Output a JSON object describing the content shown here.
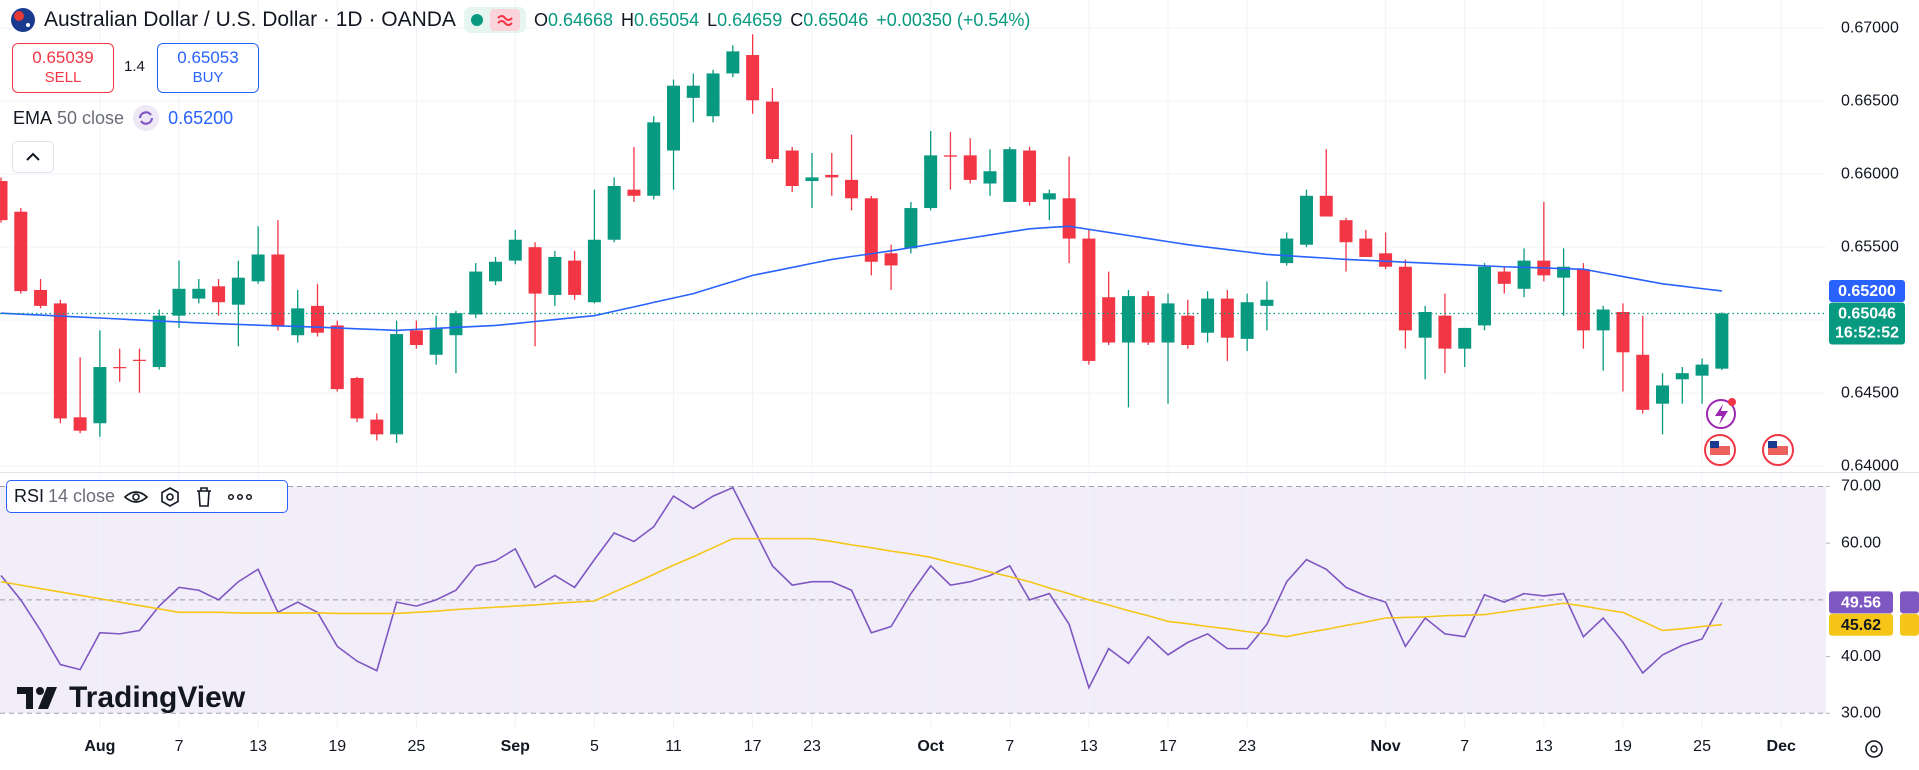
{
  "header": {
    "symbol": "Australian Dollar / U.S. Dollar · 1D · OANDA",
    "ohlc": [
      {
        "key": "O",
        "value": "0.64668"
      },
      {
        "key": "H",
        "value": "0.65054"
      },
      {
        "key": "L",
        "value": "0.64659"
      },
      {
        "key": "C",
        "value": "0.65046"
      }
    ],
    "change": "+0.00350 (+0.54%)"
  },
  "trade": {
    "sell_price": "0.65039",
    "sell": "SELL",
    "spread": "1.4",
    "buy_price": "0.65053",
    "buy": "BUY"
  },
  "watermark": "TradingView",
  "chart_data": [
    {
      "type": "candlestick",
      "categories": [
        null,
        null,
        null,
        null,
        null,
        "Aug",
        null,
        null,
        null,
        "7",
        null,
        null,
        null,
        "13",
        null,
        null,
        null,
        "19",
        null,
        null,
        null,
        "25",
        null,
        null,
        null,
        null,
        "Sep",
        null,
        null,
        null,
        "5",
        null,
        null,
        null,
        "11",
        null,
        null,
        null,
        "17",
        null,
        null,
        "23",
        null,
        null,
        null,
        null,
        null,
        "Oct",
        null,
        null,
        null,
        "7",
        null,
        null,
        null,
        "13",
        null,
        null,
        null,
        "17",
        null,
        null,
        null,
        "23",
        null,
        null,
        null,
        null,
        null,
        null,
        "Nov",
        null,
        null,
        null,
        "7",
        null,
        null,
        null,
        "13",
        null,
        null,
        null,
        "19",
        null,
        null,
        null,
        "25",
        null
      ],
      "future_categories": [
        null,
        null,
        "Dec"
      ],
      "open": [
        0.65953,
        0.65743,
        0.65207,
        0.65115,
        0.64335,
        0.64294,
        0.64679,
        0.64729,
        0.64679,
        0.65031,
        0.65148,
        0.65232,
        0.65106,
        0.65266,
        0.6545,
        0.64897,
        0.65098,
        0.64964,
        0.64604,
        0.64319,
        0.64218,
        0.6493,
        0.64763,
        0.64897,
        0.65039,
        0.65266,
        0.65408,
        0.655,
        0.65173,
        0.65408,
        0.65123,
        0.65551,
        0.65894,
        0.65852,
        0.66162,
        0.66523,
        0.66397,
        0.6669,
        0.66816,
        0.66497,
        0.66162,
        0.65953,
        0.65995,
        0.65961,
        0.65835,
        0.65458,
        0.65492,
        0.65768,
        0.66129,
        0.66129,
        0.65936,
        0.6581,
        0.66162,
        0.65827,
        0.65835,
        0.65559,
        0.65157,
        0.64847,
        0.65165,
        0.64847,
        0.65031,
        0.64914,
        0.65148,
        0.64872,
        0.65098,
        0.65391,
        0.65517,
        0.65852,
        0.65685,
        0.65559,
        0.65458,
        0.65366,
        0.6488,
        0.65031,
        0.64805,
        0.64964,
        0.65333,
        0.65215,
        0.65408,
        0.65291,
        0.65349,
        0.6493,
        0.65056,
        0.64763,
        0.64428,
        0.64595,
        0.6462,
        0.64668
      ],
      "high": [
        0.65978,
        0.65768,
        0.65282,
        0.6514,
        0.64746,
        0.6493,
        0.64805,
        0.64805,
        0.65073,
        0.65408,
        0.65282,
        0.65282,
        0.65408,
        0.65643,
        0.65685,
        0.65207,
        0.65249,
        0.64997,
        0.64612,
        0.64361,
        0.64997,
        0.64997,
        0.65031,
        0.65064,
        0.65391,
        0.65433,
        0.65618,
        0.65534,
        0.65475,
        0.65475,
        0.65894,
        0.65978,
        0.66187,
        0.66397,
        0.66648,
        0.6669,
        0.66715,
        0.66883,
        0.66958,
        0.6659,
        0.66187,
        0.66145,
        0.66145,
        0.66271,
        0.65852,
        0.65517,
        0.6581,
        0.66296,
        0.66288,
        0.66246,
        0.66171,
        0.66187,
        0.66187,
        0.65894,
        0.6612,
        0.65626,
        0.65333,
        0.65207,
        0.65199,
        0.65182,
        0.6514,
        0.65199,
        0.65207,
        0.65182,
        0.65266,
        0.65601,
        0.65894,
        0.66171,
        0.65701,
        0.65618,
        0.65601,
        0.65416,
        0.65098,
        0.65182,
        0.64947,
        0.65391,
        0.65366,
        0.65492,
        0.6581,
        0.65492,
        0.65391,
        0.65098,
        0.65115,
        0.65031,
        0.64637,
        0.64679,
        0.64738,
        0.65054
      ],
      "low": [
        0.65668,
        0.65182,
        0.65081,
        0.64294,
        0.64226,
        0.64201,
        0.64578,
        0.64503,
        0.64662,
        0.64947,
        0.65115,
        0.65031,
        0.64821,
        0.65249,
        0.6493,
        0.64847,
        0.64888,
        0.64511,
        0.64302,
        0.64176,
        0.64159,
        0.64805,
        0.64696,
        0.64637,
        0.65014,
        0.6524,
        0.65383,
        0.64821,
        0.65098,
        0.6514,
        0.65115,
        0.65534,
        0.6581,
        0.65827,
        0.65894,
        0.66355,
        0.66355,
        0.66665,
        0.66414,
        0.66078,
        0.65877,
        0.65768,
        0.65852,
        0.65752,
        0.65307,
        0.65207,
        0.65458,
        0.65752,
        0.65894,
        0.65936,
        0.65852,
        0.6581,
        0.65785,
        0.65685,
        0.65391,
        0.64696,
        0.6483,
        0.64402,
        0.6483,
        0.64428,
        0.64805,
        0.64847,
        0.64721,
        0.64788,
        0.6493,
        0.65375,
        0.655,
        0.65726,
        0.65333,
        0.65433,
        0.65349,
        0.64805,
        0.64595,
        0.64637,
        0.64679,
        0.6493,
        0.65182,
        0.65157,
        0.65266,
        0.65031,
        0.64805,
        0.64654,
        0.64511,
        0.64361,
        0.64218,
        0.64428,
        0.64428,
        0.64659
      ],
      "close": [
        0.65685,
        0.65199,
        0.65098,
        0.64327,
        0.64243,
        0.64679,
        0.64671,
        0.64721,
        0.65031,
        0.65215,
        0.65215,
        0.65123,
        0.65291,
        0.6545,
        0.64956,
        0.65081,
        0.64914,
        0.64528,
        0.64327,
        0.64218,
        0.64905,
        0.6483,
        0.64947,
        0.65048,
        0.65333,
        0.654,
        0.65551,
        0.65182,
        0.65433,
        0.65173,
        0.65551,
        0.65919,
        0.65852,
        0.66355,
        0.66606,
        0.66606,
        0.6669,
        0.66841,
        0.66506,
        0.66104,
        0.65919,
        0.65978,
        0.65978,
        0.65835,
        0.654,
        0.65375,
        0.65768,
        0.66129,
        0.6612,
        0.65961,
        0.6602,
        0.66171,
        0.6581,
        0.65869,
        0.65559,
        0.64721,
        0.64847,
        0.65165,
        0.64847,
        0.65115,
        0.6483,
        0.65148,
        0.6488,
        0.65123,
        0.6514,
        0.65559,
        0.65852,
        0.6571,
        0.65534,
        0.65433,
        0.65366,
        0.6493,
        0.65056,
        0.64805,
        0.64947,
        0.65366,
        0.65249,
        0.65408,
        0.65307,
        0.65366,
        0.6493,
        0.65073,
        0.6478,
        0.64386,
        0.64553,
        0.64637,
        0.64696,
        0.65046
      ],
      "up_color": "#089981",
      "down_color": "#f23645",
      "last_label": "0.65046",
      "countdown": "16:52:52",
      "overlays": [
        {
          "name": "EMA",
          "params": "50 close",
          "color": "#2962ff",
          "value_label": "0.65200",
          "values": [
            0.65048,
            0.65041,
            0.65035,
            0.65028,
            0.65021,
            0.65015,
            0.65008,
            0.65001,
            0.64994,
            0.64988,
            0.64981,
            0.64976,
            0.64971,
            0.64966,
            0.64961,
            0.64957,
            0.64952,
            0.64947,
            0.64941,
            0.64936,
            0.6493,
            0.64937,
            0.64944,
            0.6495,
            0.64957,
            0.64964,
            0.64977,
            0.64991,
            0.65004,
            0.65018,
            0.65031,
            0.65061,
            0.65091,
            0.65122,
            0.65152,
            0.65182,
            0.65224,
            0.65265,
            0.65307,
            0.65334,
            0.65361,
            0.65389,
            0.65416,
            0.65436,
            0.65455,
            0.65475,
            0.65497,
            0.6552,
            0.65542,
            0.65563,
            0.65584,
            0.65605,
            0.65626,
            0.65635,
            0.65643,
            0.65622,
            0.65601,
            0.6558,
            0.65559,
            0.65538,
            0.65517,
            0.655,
            0.65484,
            0.65467,
            0.6545,
            0.65442,
            0.65433,
            0.65425,
            0.65416,
            0.6541,
            0.65404,
            0.65397,
            0.65391,
            0.65385,
            0.65379,
            0.65372,
            0.65366,
            0.65362,
            0.65358,
            0.65353,
            0.65349,
            0.65324,
            0.65299,
            0.65274,
            0.65249,
            0.65233,
            0.65216,
            0.652
          ]
        }
      ],
      "ylim": [
        0.63967,
        0.67193
      ],
      "yticks": [
        {
          "value": 0.67,
          "label": "0.67000"
        },
        {
          "value": 0.665,
          "label": "0.66500"
        },
        {
          "value": 0.66,
          "label": "0.66000"
        },
        {
          "value": 0.655,
          "label": "0.65500"
        },
        {
          "value": 0.65,
          "label": "0.65000"
        },
        {
          "value": 0.645,
          "label": "0.64500"
        },
        {
          "value": 0.64,
          "label": "0.64000"
        }
      ],
      "grid": true
    },
    {
      "type": "line",
      "series": [
        {
          "name": "RSI",
          "params": "14 close",
          "color": "#7e57c2",
          "value_label": "49.56",
          "values": [
            54.3,
            50.0,
            44.6,
            38.6,
            37.7,
            44.2,
            44.0,
            44.6,
            48.9,
            52.2,
            51.7,
            50.0,
            53.2,
            55.4,
            47.8,
            49.6,
            47.8,
            41.8,
            39.2,
            37.5,
            49.6,
            48.9,
            50.0,
            51.7,
            56.0,
            56.9,
            59.0,
            52.2,
            54.3,
            52.2,
            57.1,
            61.8,
            60.3,
            62.9,
            68.3,
            66.1,
            68.3,
            69.8,
            62.9,
            56.0,
            52.6,
            53.2,
            53.2,
            51.7,
            44.2,
            45.3,
            51.1,
            56.0,
            52.6,
            53.2,
            54.3,
            56.0,
            50.0,
            51.1,
            45.7,
            34.5,
            41.4,
            38.8,
            43.5,
            40.3,
            42.5,
            44.0,
            41.4,
            41.4,
            45.7,
            53.2,
            57.1,
            55.4,
            52.2,
            50.7,
            49.6,
            41.8,
            46.8,
            44.0,
            43.5,
            50.9,
            49.6,
            51.1,
            50.7,
            51.1,
            43.5,
            46.8,
            42.5,
            37.1,
            40.3,
            42.0,
            43.1,
            49.56
          ]
        },
        {
          "color": "#f5c518",
          "value_label": "45.62",
          "values": [
            53.2,
            52.6,
            52.0,
            51.4,
            50.8,
            50.2,
            49.6,
            49.0,
            48.4,
            47.8,
            47.8,
            47.8,
            47.7,
            47.7,
            47.7,
            47.7,
            47.7,
            47.6,
            47.6,
            47.6,
            47.6,
            47.8,
            48.0,
            48.3,
            48.5,
            48.7,
            48.9,
            49.1,
            49.4,
            49.6,
            49.8,
            51.4,
            52.9,
            54.5,
            56.1,
            57.6,
            59.2,
            60.8,
            60.8,
            60.8,
            60.8,
            60.8,
            60.3,
            59.7,
            59.2,
            58.6,
            58.1,
            57.5,
            56.6,
            55.8,
            54.9,
            54.1,
            53.2,
            52.1,
            51.1,
            50.0,
            49.1,
            48.1,
            47.2,
            46.2,
            45.8,
            45.3,
            44.9,
            44.4,
            44.0,
            43.5,
            44.2,
            44.8,
            45.5,
            46.1,
            46.8,
            46.9,
            47.0,
            47.2,
            47.3,
            47.4,
            47.9,
            48.4,
            48.9,
            49.4,
            48.9,
            48.3,
            47.8,
            46.2,
            44.6,
            44.9,
            45.3,
            45.62
          ]
        }
      ],
      "bands": [
        70,
        50,
        30
      ],
      "ylim": [
        27.4,
        72.2
      ],
      "yticks": [
        {
          "value": 70,
          "label": "70.00"
        },
        {
          "value": 60,
          "label": "60.00"
        },
        {
          "value": 40,
          "label": "40.00"
        },
        {
          "value": 30,
          "label": "30.00"
        }
      ]
    }
  ]
}
